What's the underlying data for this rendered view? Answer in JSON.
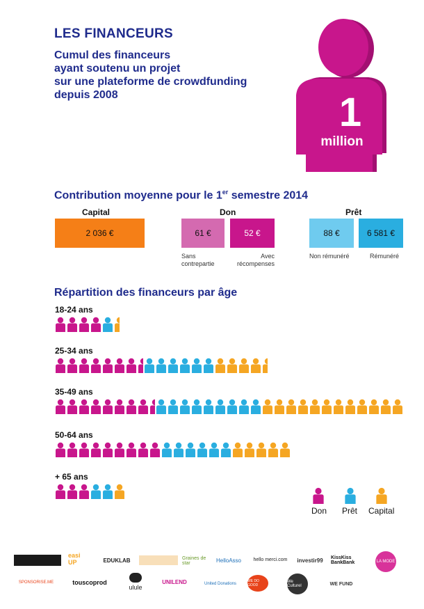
{
  "header": {
    "title": "LES FINANCEURS",
    "subtitle_lines": [
      "Cumul des financeurs",
      "ayant soutenu un projet",
      "sur une plateforme de crowdfunding",
      "depuis 2008"
    ],
    "figure_number": "1",
    "figure_word": "million"
  },
  "contribution": {
    "title": "Contribution moyenne pour le 1",
    "title_sup": "er",
    "title_end": " semestre 2014",
    "capital": {
      "label": "Capital",
      "value": "2 036 €"
    },
    "don": {
      "label": "Don",
      "sans_value": "61 €",
      "sans_note_1": "Sans",
      "sans_note_2": "contrepartie",
      "avec_value": "52 €",
      "avec_note_1": "Avec",
      "avec_note_2": "récompenses"
    },
    "pret": {
      "label": "Prêt",
      "non_value": "88 €",
      "non_note": "Non rémunéré",
      "rem_value": "6 581 €",
      "rem_note": "Rémunéré"
    }
  },
  "age": {
    "title": "Répartition des financeurs par âge",
    "groups": [
      {
        "label": "18-24 ans",
        "don": 4.0,
        "pret": 1.0,
        "capital": 0.5
      },
      {
        "label": "25-34 ans",
        "don": 7.5,
        "pret": 6.0,
        "capital": 4.5
      },
      {
        "label": "35-49 ans",
        "don": 8.5,
        "pret": 9.0,
        "capital": 12.0
      },
      {
        "label": "50-64 ans",
        "don": 9.0,
        "pret": 6.0,
        "capital": 5.0
      },
      {
        "label": "+ 65 ans",
        "don": 3.0,
        "pret": 2.0,
        "capital": 1.0
      }
    ]
  },
  "legend": {
    "don": "Don",
    "pret": "Prêt",
    "capital": "Capital"
  },
  "colors": {
    "don": "#c8168c",
    "pret": "#2aaee0",
    "capital": "#f5a623",
    "capital_box": "#f57f17",
    "don_box1": "#d46ab0",
    "don_box2": "#c8168c",
    "pret_box1": "#6fcbef",
    "pret_box2": "#2aaee0",
    "title": "#1f2b8c"
  },
  "logos": {
    "row1": [
      "",
      "easi UP",
      "EDUKLAB",
      "",
      "Graines de star",
      "HelloAsso",
      "hello merci.com",
      "investir99",
      "KissKiss BankBank",
      "LA MODE"
    ],
    "row2": [
      "SPONSORISE.ME",
      "touscoprod",
      "ulule",
      "UNILEND",
      "United Donations",
      "WE DO GOOD",
      "We Culturel",
      "WE FUND"
    ]
  }
}
